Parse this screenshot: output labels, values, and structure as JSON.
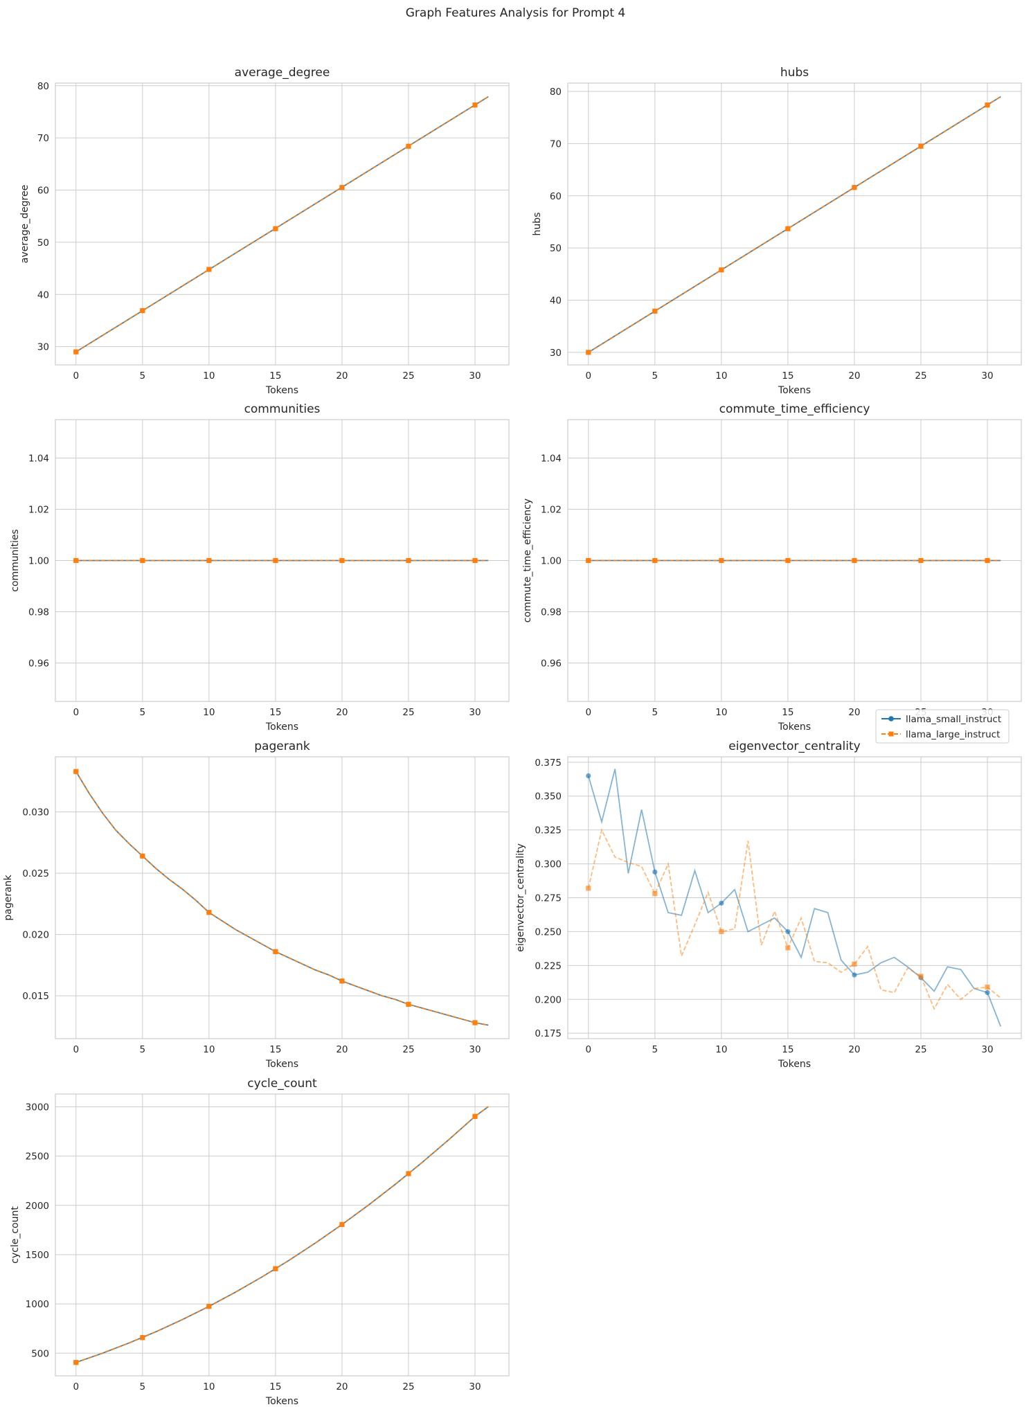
{
  "figure_title": "Graph Features Analysis for Prompt 4",
  "legend": {
    "placement": "upper-right of eigenvector_centrality panel",
    "entries": [
      "llama_small_instruct",
      "llama_large_instruct"
    ]
  },
  "colors": {
    "llama_small_instruct": "#1f77b4",
    "llama_large_instruct": "#ff7f0e"
  },
  "chart_data": [
    {
      "type": "line",
      "title": "average_degree",
      "xlabel": "Tokens",
      "ylabel": "average_degree",
      "xlim": [
        -1.55,
        32.55
      ],
      "ylim": [
        26.5,
        80.5
      ],
      "xticks": [
        0,
        5,
        10,
        15,
        20,
        25,
        30
      ],
      "yticks": [
        30,
        40,
        50,
        60,
        70,
        80
      ],
      "grid": true,
      "series": [
        {
          "name": "llama_small_instruct",
          "x": [
            0,
            31
          ],
          "y": [
            29.0,
            77.9
          ],
          "marker_x": [
            0,
            5,
            10,
            15,
            20,
            25,
            30
          ],
          "marker_y": [
            29.0,
            36.9,
            44.8,
            52.6,
            60.5,
            68.4,
            76.3
          ]
        },
        {
          "name": "llama_large_instruct",
          "x": [
            0,
            31
          ],
          "y": [
            29.0,
            77.9
          ],
          "marker_x": [
            0,
            5,
            10,
            15,
            20,
            25,
            30
          ],
          "marker_y": [
            29.0,
            36.9,
            44.8,
            52.6,
            60.5,
            68.4,
            76.3
          ]
        }
      ]
    },
    {
      "type": "line",
      "title": "hubs",
      "xlabel": "Tokens",
      "ylabel": "hubs",
      "xlim": [
        -1.55,
        32.55
      ],
      "ylim": [
        27.6,
        81.6
      ],
      "xticks": [
        0,
        5,
        10,
        15,
        20,
        25,
        30
      ],
      "yticks": [
        30,
        40,
        50,
        60,
        70,
        80
      ],
      "grid": true,
      "series": [
        {
          "name": "llama_small_instruct",
          "x": [
            0,
            31
          ],
          "y": [
            30.0,
            79.0
          ],
          "marker_x": [
            0,
            5,
            10,
            15,
            20,
            25,
            30
          ],
          "marker_y": [
            30.0,
            37.9,
            45.8,
            53.7,
            61.6,
            69.5,
            77.4
          ]
        },
        {
          "name": "llama_large_instruct",
          "x": [
            0,
            31
          ],
          "y": [
            30.0,
            79.0
          ],
          "marker_x": [
            0,
            5,
            10,
            15,
            20,
            25,
            30
          ],
          "marker_y": [
            30.0,
            37.9,
            45.8,
            53.7,
            61.6,
            69.5,
            77.4
          ]
        }
      ]
    },
    {
      "type": "line",
      "title": "communities",
      "xlabel": "Tokens",
      "ylabel": "communities",
      "xlim": [
        -1.55,
        32.55
      ],
      "ylim": [
        0.945,
        1.055
      ],
      "xticks": [
        0,
        5,
        10,
        15,
        20,
        25,
        30
      ],
      "yticks": [
        0.96,
        0.98,
        1.0,
        1.02,
        1.04
      ],
      "yformat": 2,
      "grid": true,
      "series": [
        {
          "name": "llama_small_instruct",
          "x": [
            0,
            31
          ],
          "y": [
            1.0,
            1.0
          ],
          "marker_x": [
            0,
            5,
            10,
            15,
            20,
            25,
            30
          ],
          "marker_y": [
            1,
            1,
            1,
            1,
            1,
            1,
            1
          ]
        },
        {
          "name": "llama_large_instruct",
          "x": [
            0,
            31
          ],
          "y": [
            1.0,
            1.0
          ],
          "marker_x": [
            0,
            5,
            10,
            15,
            20,
            25,
            30
          ],
          "marker_y": [
            1,
            1,
            1,
            1,
            1,
            1,
            1
          ]
        }
      ]
    },
    {
      "type": "line",
      "title": "commute_time_efficiency",
      "xlabel": "Tokens",
      "ylabel": "commute_time_efficiency",
      "xlim": [
        -1.55,
        32.55
      ],
      "ylim": [
        0.945,
        1.055
      ],
      "xticks": [
        0,
        5,
        10,
        15,
        20,
        25,
        30
      ],
      "yticks": [
        0.96,
        0.98,
        1.0,
        1.02,
        1.04
      ],
      "yformat": 2,
      "grid": true,
      "series": [
        {
          "name": "llama_small_instruct",
          "x": [
            0,
            31
          ],
          "y": [
            1.0,
            1.0
          ],
          "marker_x": [
            0,
            5,
            10,
            15,
            20,
            25,
            30
          ],
          "marker_y": [
            1,
            1,
            1,
            1,
            1,
            1,
            1
          ]
        },
        {
          "name": "llama_large_instruct",
          "x": [
            0,
            31
          ],
          "y": [
            1.0,
            1.0
          ],
          "marker_x": [
            0,
            5,
            10,
            15,
            20,
            25,
            30
          ],
          "marker_y": [
            1,
            1,
            1,
            1,
            1,
            1,
            1
          ]
        }
      ]
    },
    {
      "type": "line",
      "title": "pagerank",
      "xlabel": "Tokens",
      "ylabel": "pagerank",
      "xlim": [
        -1.55,
        32.55
      ],
      "ylim": [
        0.0115,
        0.0345
      ],
      "xticks": [
        0,
        5,
        10,
        15,
        20,
        25,
        30
      ],
      "yticks": [
        0.015,
        0.02,
        0.025,
        0.03
      ],
      "yformat": 3,
      "grid": true,
      "series": [
        {
          "name": "llama_small_instruct",
          "x": [
            0,
            1,
            2,
            3,
            4,
            5,
            6,
            7,
            8,
            9,
            10,
            11,
            12,
            13,
            14,
            15,
            16,
            17,
            18,
            19,
            20,
            21,
            22,
            23,
            24,
            25,
            26,
            27,
            28,
            29,
            30,
            31
          ],
          "y": [
            0.0333,
            0.0315,
            0.0299,
            0.0285,
            0.0274,
            0.0264,
            0.0254,
            0.0245,
            0.0237,
            0.0228,
            0.0218,
            0.0211,
            0.0204,
            0.0198,
            0.0192,
            0.0186,
            0.0181,
            0.0176,
            0.0171,
            0.0167,
            0.0162,
            0.0158,
            0.0154,
            0.015,
            0.0147,
            0.0143,
            0.014,
            0.0137,
            0.0134,
            0.0131,
            0.0128,
            0.0126
          ],
          "marker_x": [
            0,
            5,
            10,
            15,
            20,
            25,
            30
          ],
          "marker_y": [
            0.0333,
            0.0264,
            0.0218,
            0.0186,
            0.0162,
            0.0143,
            0.0128
          ]
        },
        {
          "name": "llama_large_instruct",
          "x": [
            0,
            1,
            2,
            3,
            4,
            5,
            6,
            7,
            8,
            9,
            10,
            11,
            12,
            13,
            14,
            15,
            16,
            17,
            18,
            19,
            20,
            21,
            22,
            23,
            24,
            25,
            26,
            27,
            28,
            29,
            30,
            31
          ],
          "y": [
            0.0333,
            0.0315,
            0.0299,
            0.0285,
            0.0274,
            0.0264,
            0.0254,
            0.0245,
            0.0237,
            0.0228,
            0.0218,
            0.0211,
            0.0204,
            0.0198,
            0.0192,
            0.0186,
            0.0181,
            0.0176,
            0.0171,
            0.0167,
            0.0162,
            0.0158,
            0.0154,
            0.015,
            0.0147,
            0.0143,
            0.014,
            0.0137,
            0.0134,
            0.0131,
            0.0128,
            0.0126
          ],
          "marker_x": [
            0,
            5,
            10,
            15,
            20,
            25,
            30
          ],
          "marker_y": [
            0.0333,
            0.0264,
            0.0218,
            0.0186,
            0.0162,
            0.0143,
            0.0128
          ]
        }
      ]
    },
    {
      "type": "line",
      "title": "eigenvector_centrality",
      "xlabel": "Tokens",
      "ylabel": "eigenvector_centrality",
      "xlim": [
        -1.55,
        32.55
      ],
      "ylim": [
        0.171,
        0.379
      ],
      "xticks": [
        0,
        5,
        10,
        15,
        20,
        25,
        30
      ],
      "yticks": [
        0.175,
        0.2,
        0.225,
        0.25,
        0.275,
        0.3,
        0.325,
        0.35,
        0.375
      ],
      "yformat": 3,
      "grid": true,
      "series": [
        {
          "name": "llama_small_instruct",
          "x": [
            0,
            1,
            2,
            3,
            4,
            5,
            6,
            7,
            8,
            9,
            10,
            11,
            12,
            13,
            14,
            15,
            16,
            17,
            18,
            19,
            20,
            21,
            22,
            23,
            24,
            25,
            26,
            27,
            28,
            29,
            30,
            31
          ],
          "y": [
            0.365,
            0.331,
            0.37,
            0.293,
            0.34,
            0.294,
            0.264,
            0.262,
            0.295,
            0.264,
            0.271,
            0.281,
            0.25,
            0.255,
            0.26,
            0.25,
            0.231,
            0.267,
            0.264,
            0.229,
            0.218,
            0.22,
            0.227,
            0.231,
            0.224,
            0.216,
            0.206,
            0.224,
            0.222,
            0.208,
            0.205,
            0.18
          ],
          "marker_x": [
            0,
            5,
            10,
            15,
            20,
            25,
            30
          ],
          "marker_y": [
            0.365,
            0.294,
            0.271,
            0.25,
            0.218,
            0.216,
            0.205
          ]
        },
        {
          "name": "llama_large_instruct",
          "x": [
            0,
            1,
            2,
            3,
            4,
            5,
            6,
            7,
            8,
            9,
            10,
            11,
            12,
            13,
            14,
            15,
            16,
            17,
            18,
            19,
            20,
            21,
            22,
            23,
            24,
            25,
            26,
            27,
            28,
            29,
            30,
            31
          ],
          "y": [
            0.282,
            0.325,
            0.305,
            0.301,
            0.298,
            0.278,
            0.3,
            0.232,
            0.255,
            0.279,
            0.25,
            0.252,
            0.317,
            0.24,
            0.265,
            0.238,
            0.26,
            0.228,
            0.227,
            0.22,
            0.226,
            0.239,
            0.207,
            0.205,
            0.223,
            0.217,
            0.193,
            0.211,
            0.2,
            0.208,
            0.209,
            0.201
          ],
          "marker_x": [
            0,
            5,
            10,
            15,
            20,
            25,
            30
          ],
          "marker_y": [
            0.282,
            0.278,
            0.25,
            0.238,
            0.226,
            0.217,
            0.209
          ]
        }
      ]
    },
    {
      "type": "line",
      "title": "cycle_count",
      "xlabel": "Tokens",
      "ylabel": "cycle_count",
      "xlim": [
        -1.55,
        32.55
      ],
      "ylim": [
        270,
        3130
      ],
      "xticks": [
        0,
        5,
        10,
        15,
        20,
        25,
        30
      ],
      "yticks": [
        500,
        1000,
        1500,
        2000,
        2500,
        3000
      ],
      "grid": true,
      "series": [
        {
          "name": "llama_small_instruct",
          "x": [
            0,
            2,
            4,
            6,
            8,
            10,
            12,
            14,
            16,
            18,
            20,
            22,
            24,
            26,
            28,
            30,
            31
          ],
          "y": [
            406,
            500,
            604,
            717,
            841,
            975,
            1120,
            1275,
            1441,
            1618,
            1806,
            2004,
            2213,
            2433,
            2663,
            2903,
            3002
          ],
          "marker_x": [
            0,
            5,
            10,
            15,
            20,
            25,
            30
          ],
          "marker_y": [
            406,
            658,
            975,
            1357,
            1806,
            2322,
            2903
          ]
        },
        {
          "name": "llama_large_instruct",
          "x": [
            0,
            2,
            4,
            6,
            8,
            10,
            12,
            14,
            16,
            18,
            20,
            22,
            24,
            26,
            28,
            30,
            31
          ],
          "y": [
            406,
            500,
            604,
            717,
            841,
            975,
            1120,
            1275,
            1441,
            1618,
            1806,
            2004,
            2213,
            2433,
            2663,
            2903,
            3002
          ],
          "marker_x": [
            0,
            5,
            10,
            15,
            20,
            25,
            30
          ],
          "marker_y": [
            406,
            658,
            975,
            1357,
            1806,
            2322,
            2903
          ]
        }
      ]
    }
  ]
}
